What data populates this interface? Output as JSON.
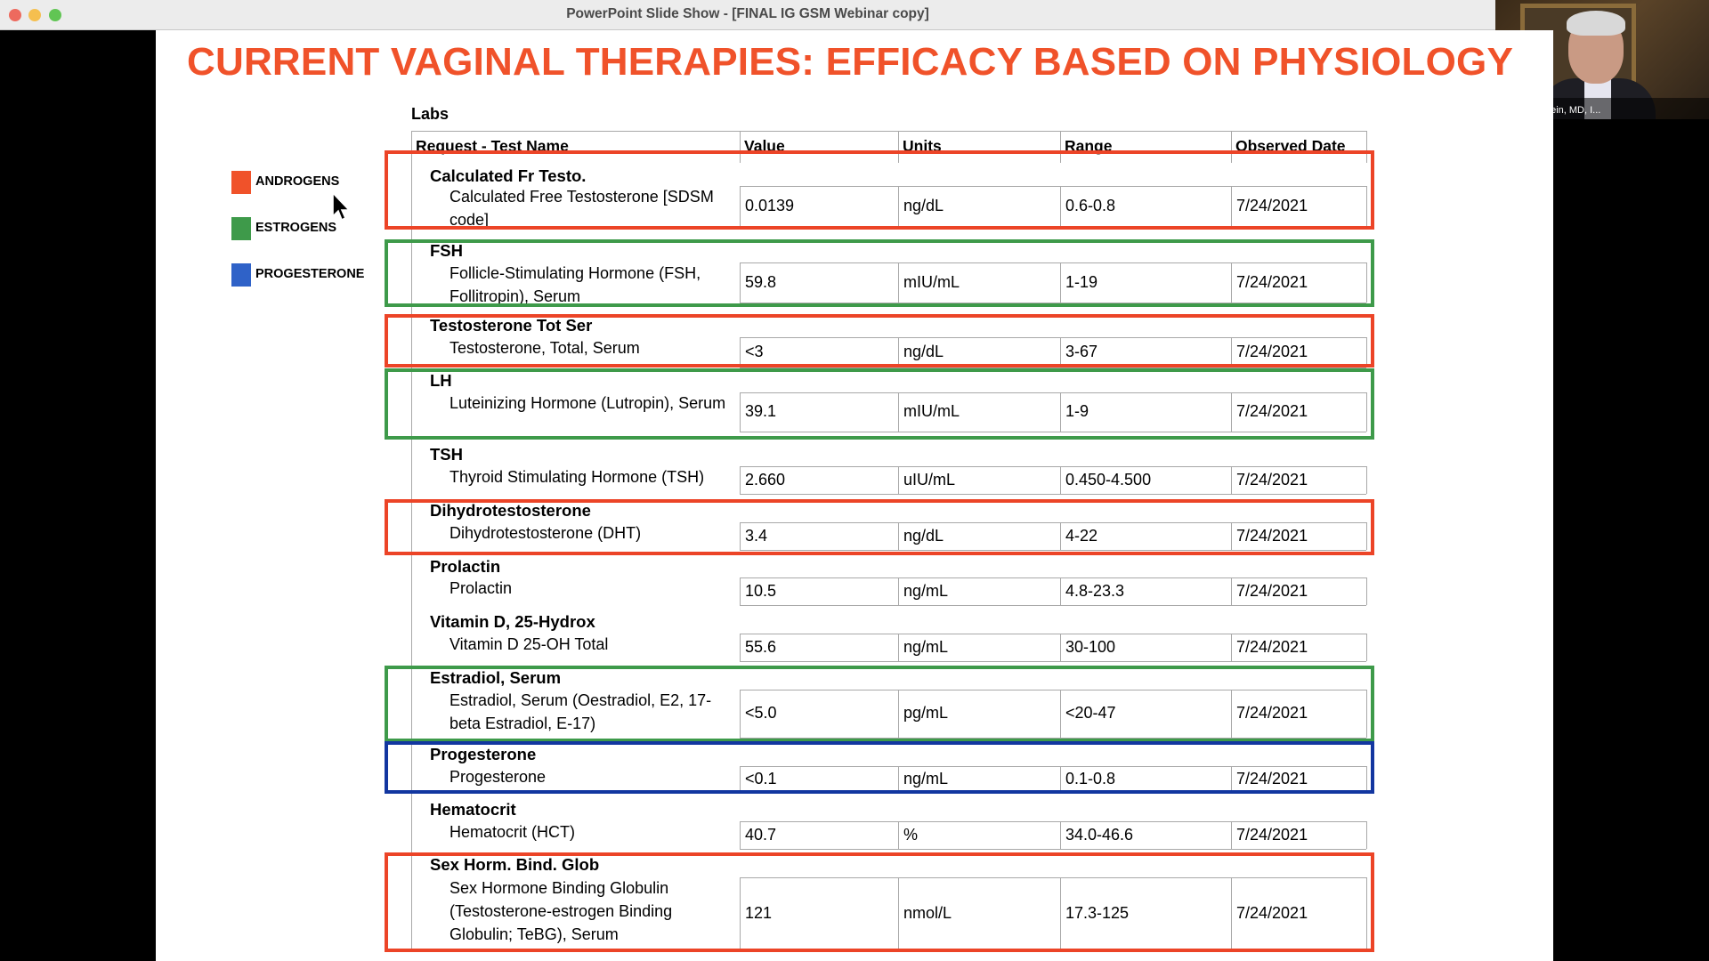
{
  "window": {
    "title": "PowerPoint Slide Show - [FINAL IG GSM Webinar copy]"
  },
  "video": {
    "participant_name": "Irwin Goldstein, MD, I..."
  },
  "slide": {
    "title": "CURRENT VAGINAL THERAPIES: EFFICACY BASED ON PHYSIOLOGY",
    "legend": [
      {
        "label": "ANDROGENS",
        "color": "#f0522a"
      },
      {
        "label": "ESTROGENS",
        "color": "#3e9a4a"
      },
      {
        "label": "PROGESTERONE",
        "color": "#2f62c8"
      }
    ],
    "labs_title": "Labs",
    "columns": [
      "Request - Test Name",
      "Value",
      "Units",
      "Range",
      "Observed Date"
    ],
    "rows": [
      {
        "group": "Calculated Fr Testo.",
        "test": "Calculated Free Testosterone [SDSM code]",
        "value": "0.0139",
        "units": "ng/dL",
        "range": "0.6-0.8",
        "date": "7/24/2021",
        "highlight": "androgen"
      },
      {
        "group": "FSH",
        "test": "Follicle-Stimulating Hormone (FSH, Follitropin), Serum",
        "value": "59.8",
        "units": "mIU/mL",
        "range": "1-19",
        "date": "7/24/2021",
        "highlight": "estrogen"
      },
      {
        "group": "Testosterone Tot Ser",
        "test": "Testosterone, Total, Serum",
        "value": "<3",
        "units": "ng/dL",
        "range": "3-67",
        "date": "7/24/2021",
        "highlight": "androgen"
      },
      {
        "group": "LH",
        "test": "Luteinizing Hormone (Lutropin), Serum",
        "value": "39.1",
        "units": "mIU/mL",
        "range": "1-9",
        "date": "7/24/2021",
        "highlight": "estrogen"
      },
      {
        "group": "TSH",
        "test": "Thyroid Stimulating Hormone (TSH)",
        "value": "2.660",
        "units": "uIU/mL",
        "range": "0.450-4.500",
        "date": "7/24/2021",
        "highlight": ""
      },
      {
        "group": "Dihydrotestosterone",
        "test": "Dihydrotestosterone (DHT)",
        "value": "3.4",
        "units": "ng/dL",
        "range": "4-22",
        "date": "7/24/2021",
        "highlight": "androgen"
      },
      {
        "group": "Prolactin",
        "test": "Prolactin",
        "value": "10.5",
        "units": "ng/mL",
        "range": "4.8-23.3",
        "date": "7/24/2021",
        "highlight": ""
      },
      {
        "group": "Vitamin D, 25-Hydrox",
        "test": "Vitamin D 25-OH Total",
        "value": "55.6",
        "units": "ng/mL",
        "range": "30-100",
        "date": "7/24/2021",
        "highlight": ""
      },
      {
        "group": "Estradiol, Serum",
        "test": "Estradiol, Serum (Oestradiol, E2, 17-beta Estradiol, E-17)",
        "value": "<5.0",
        "units": "pg/mL",
        "range": "<20-47",
        "date": "7/24/2021",
        "highlight": "estrogen"
      },
      {
        "group": "Progesterone",
        "test": "Progesterone",
        "value": "<0.1",
        "units": "ng/mL",
        "range": "0.1-0.8",
        "date": "7/24/2021",
        "highlight": "progesterone"
      },
      {
        "group": "Hematocrit",
        "test": "Hematocrit (HCT)",
        "value": "40.7",
        "units": "%",
        "range": "34.0-46.6",
        "date": "7/24/2021",
        "highlight": ""
      },
      {
        "group": "Sex Horm. Bind. Glob",
        "test": "Sex Hormone Binding Globulin (Testosterone-estrogen Binding Globulin; TeBG), Serum",
        "value": "121",
        "units": "nmol/L",
        "range": "17.3-125",
        "date": "7/24/2021",
        "highlight": "androgen"
      }
    ]
  }
}
